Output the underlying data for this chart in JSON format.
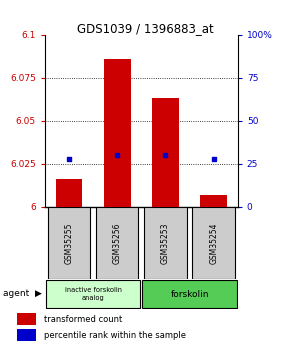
{
  "title": "GDS1039 / 1396883_at",
  "samples": [
    "GSM35255",
    "GSM35256",
    "GSM35253",
    "GSM35254"
  ],
  "red_values": [
    6.016,
    6.086,
    6.063,
    6.007
  ],
  "blue_values": [
    28,
    30,
    30,
    28
  ],
  "ymin": 6.0,
  "ymax": 6.1,
  "y2min": 0,
  "y2max": 100,
  "yticks": [
    6,
    6.025,
    6.05,
    6.075,
    6.1
  ],
  "ytick_labels": [
    "6",
    "6.025",
    "6.05",
    "6.075",
    "6.1"
  ],
  "y2ticks": [
    0,
    25,
    50,
    75,
    100
  ],
  "y2ticklabels": [
    "0",
    "25",
    "50",
    "75",
    "100%"
  ],
  "bar_color": "#cc0000",
  "dot_color": "#0000cc",
  "bar_width": 0.55,
  "group1_label": "inactive forskolin\nanalog",
  "group1_color": "#ccffcc",
  "group2_label": "forskolin",
  "group2_color": "#55cc55",
  "legend_red_label": "transformed count",
  "legend_blue_label": "percentile rank within the sample",
  "agent_label": "agent"
}
